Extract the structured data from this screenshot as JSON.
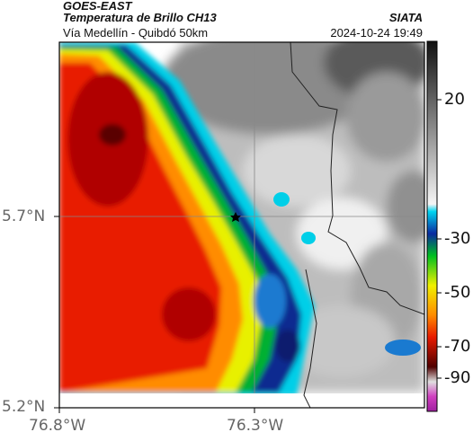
{
  "header": {
    "satellite": "GOES-EAST",
    "product": "Temperatura de Brillo CH13",
    "location": "Vía Medellín - Quibdó 50km",
    "organization": "SIATA",
    "timestamp": "2024-10-24 19:49"
  },
  "map": {
    "lat_labels": [
      "5.7°N",
      "5.2°N"
    ],
    "lon_labels": [
      "76.8°W",
      "76.3°W"
    ],
    "gridlines": true,
    "marker": "star"
  },
  "colorbar": {
    "tick_labels": [
      "20",
      "-30",
      "-50",
      "-70",
      "-90"
    ],
    "colors": {
      "gray_dark": "#202020",
      "gray_light": "#f2f2f2",
      "cyan": "#00cfe8",
      "blue": "#1a7ad0",
      "navy": "#0a1e6e",
      "green": "#00c020",
      "yellow": "#f0f000",
      "orange": "#ff8c00",
      "red": "#e81a00",
      "dark_red": "#7a0000",
      "black": "#000000",
      "magenta": "#c020b0"
    }
  }
}
